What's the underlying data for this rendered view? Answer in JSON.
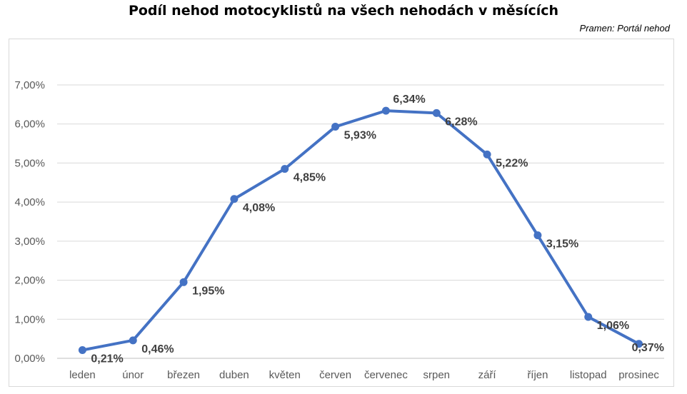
{
  "chart_data": {
    "type": "line",
    "title": "Podíl nehod motocyklistů na všech nehodách v měsících",
    "source": "Pramen: Portál nehod",
    "categories": [
      "leden",
      "únor",
      "březen",
      "duben",
      "květen",
      "červen",
      "červenec",
      "srpen",
      "září",
      "říjen",
      "listopad",
      "prosinec"
    ],
    "values": [
      0.21,
      0.46,
      1.95,
      4.08,
      4.85,
      5.93,
      6.34,
      6.28,
      5.22,
      3.15,
      1.06,
      0.37
    ],
    "value_labels": [
      "0,21%",
      "0,46%",
      "1,95%",
      "4,08%",
      "4,85%",
      "5,93%",
      "6,34%",
      "6,28%",
      "5,22%",
      "3,15%",
      "1,06%",
      "0,37%"
    ],
    "yticks": [
      "0,00%",
      "1,00%",
      "2,00%",
      "3,00%",
      "4,00%",
      "5,00%",
      "6,00%",
      "7,00%"
    ],
    "ylim": [
      0,
      7
    ],
    "grid": true,
    "legend": "none",
    "line_color": "#4472c4"
  }
}
